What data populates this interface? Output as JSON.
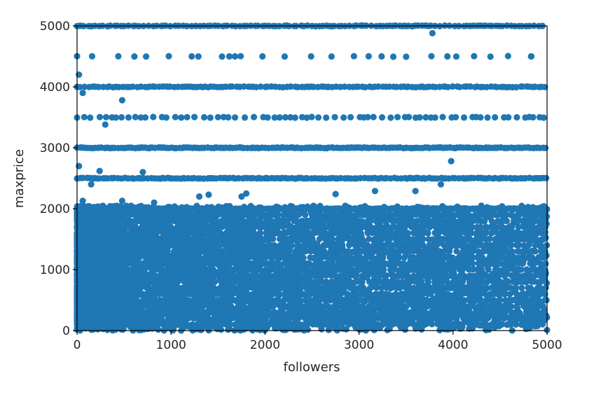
{
  "chart_data": {
    "type": "scatter",
    "title": "",
    "xlabel": "followers",
    "ylabel": "maxprice",
    "xlim": [
      0,
      5000
    ],
    "ylim": [
      0,
      5000
    ],
    "xticks": [
      0,
      1000,
      2000,
      3000,
      4000,
      5000
    ],
    "yticks": [
      0,
      1000,
      2000,
      3000,
      4000,
      5000
    ],
    "grid": false,
    "legend": "none",
    "point_color": "#1f77b4",
    "dense_region": {
      "x_range": [
        0,
        5000
      ],
      "y_range": [
        0,
        2050
      ],
      "density": "very high at low followers, decreasing with followers"
    },
    "price_bands": [
      {
        "y": 2000,
        "x_range": [
          0,
          5000
        ],
        "step": 22
      },
      {
        "y": 2500,
        "x_range": [
          0,
          5000
        ],
        "step": 30
      },
      {
        "y": 3000,
        "x_range": [
          0,
          5000
        ],
        "step": 26
      },
      {
        "y": 3500,
        "x_range": [
          0,
          5000
        ],
        "step": 70
      },
      {
        "y": 4000,
        "x_range": [
          0,
          5000
        ],
        "step": 34
      },
      {
        "y": 4500,
        "x_range": [
          0,
          4900
        ],
        "step": 220
      },
      {
        "y": 5000,
        "x_range": [
          0,
          5000
        ],
        "step": 38
      }
    ],
    "outliers": [
      [
        20,
        4200
      ],
      [
        60,
        3900
      ],
      [
        480,
        3780
      ],
      [
        300,
        3380
      ],
      [
        20,
        2700
      ],
      [
        240,
        2620
      ],
      [
        700,
        2600
      ],
      [
        150,
        2400
      ],
      [
        3980,
        2780
      ],
      [
        3870,
        2400
      ],
      [
        1300,
        2200
      ],
      [
        1400,
        2230
      ],
      [
        1750,
        2200
      ],
      [
        1800,
        2250
      ],
      [
        2750,
        2240
      ],
      [
        3170,
        2290
      ],
      [
        3600,
        2290
      ],
      [
        3780,
        4880
      ],
      [
        3240,
        4500
      ],
      [
        3940,
        4500
      ],
      [
        4830,
        4500
      ],
      [
        1220,
        4500
      ],
      [
        1620,
        4500
      ],
      [
        1680,
        4500
      ],
      [
        60,
        2130
      ],
      [
        480,
        2130
      ],
      [
        820,
        2100
      ]
    ]
  }
}
